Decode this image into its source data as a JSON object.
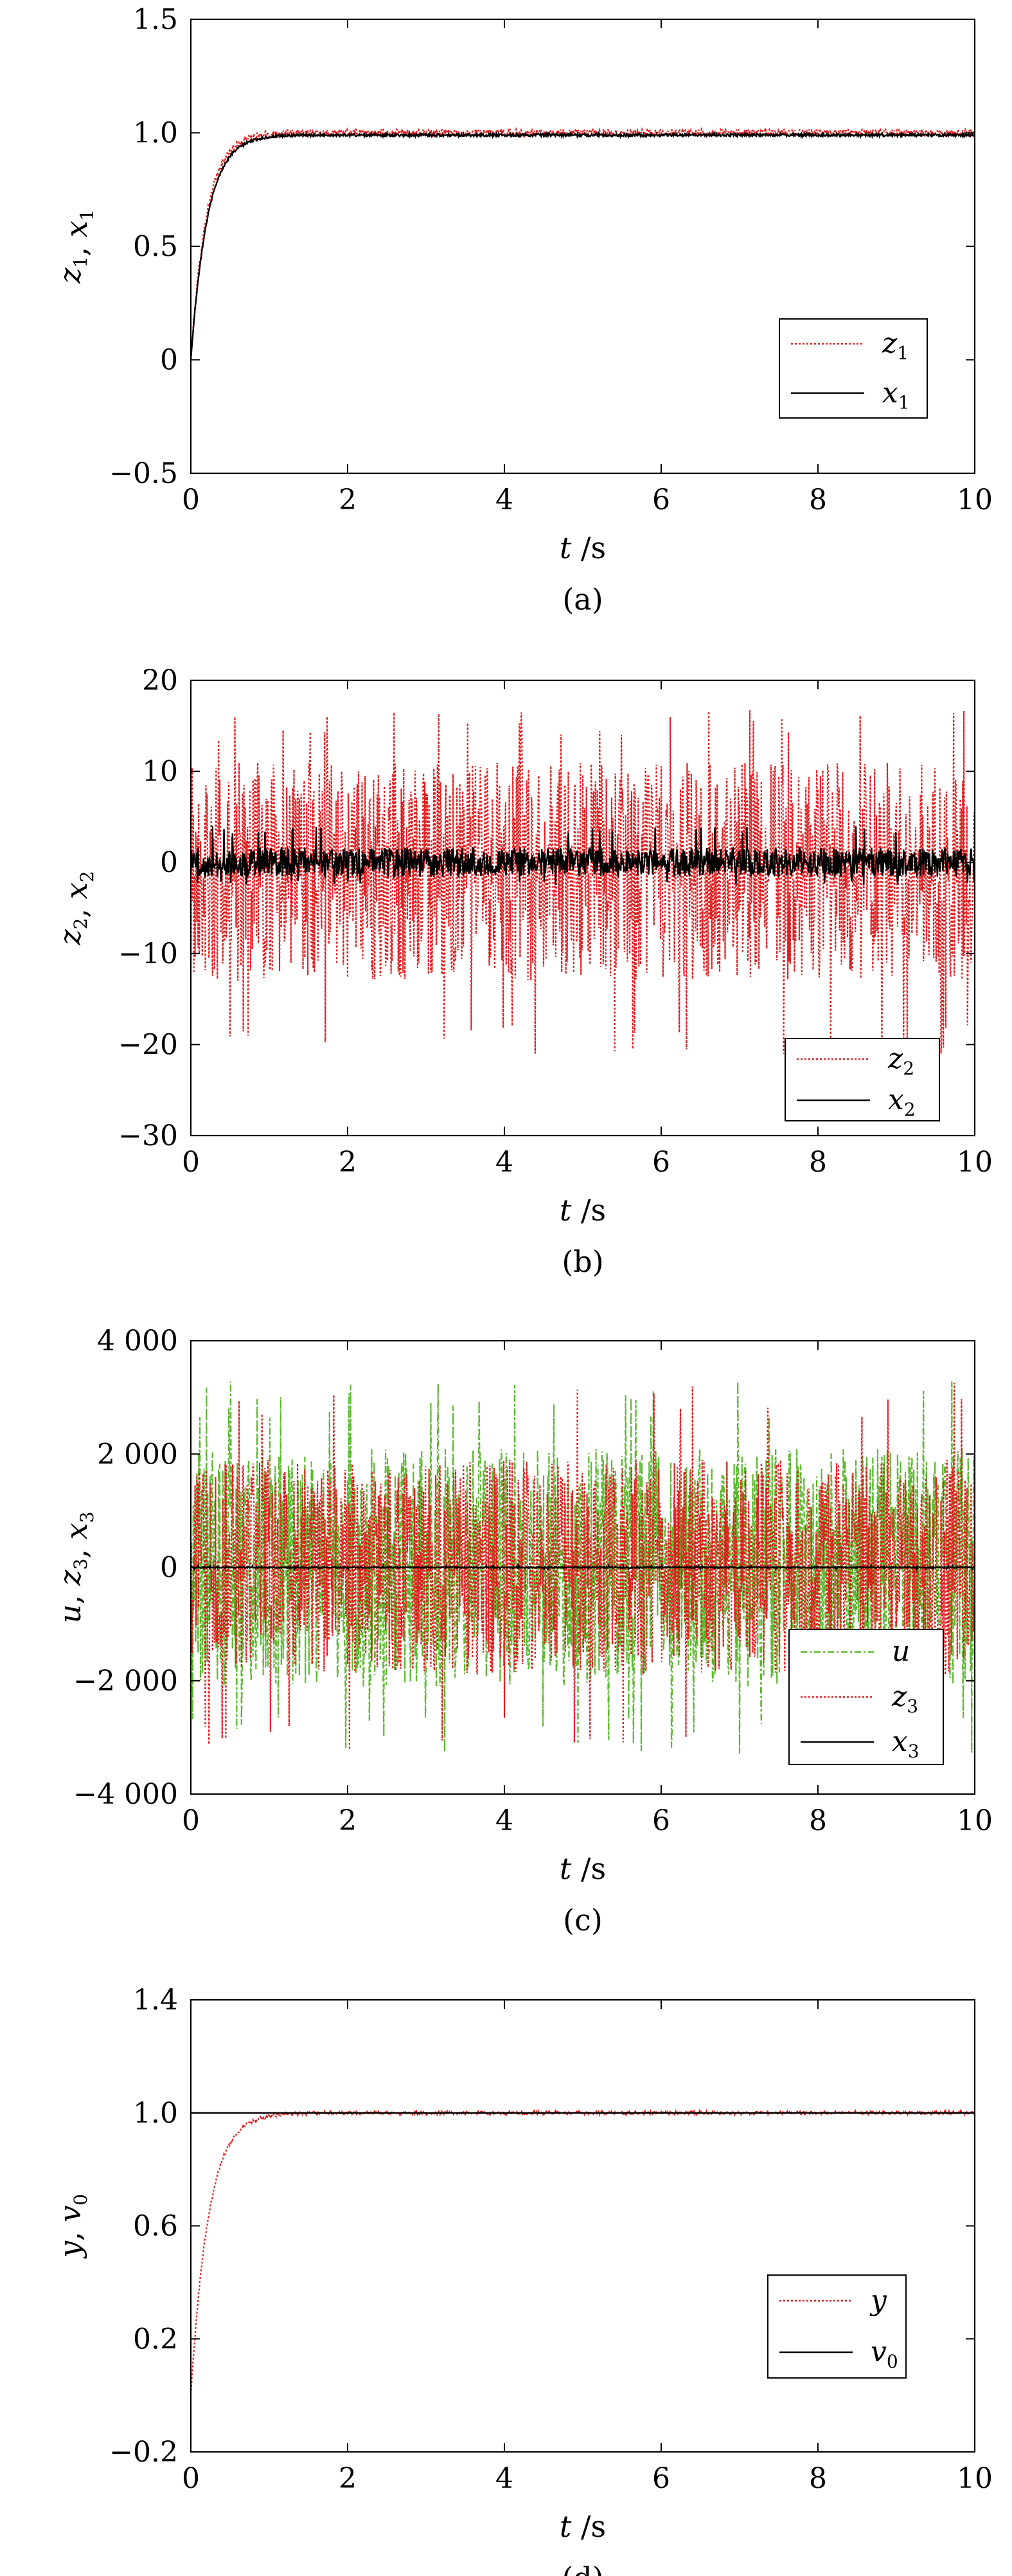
{
  "chart_data": [
    {
      "type": "line",
      "caption": "(a)",
      "xlabel": "t /s",
      "ylabel": "z1, x1",
      "xlim": [
        0,
        10
      ],
      "ylim": [
        -0.5,
        1.5
      ],
      "xticks": [
        0,
        2,
        4,
        6,
        8,
        10
      ],
      "xtick_labels": [
        "0",
        "2",
        "4",
        "6",
        "8",
        "10"
      ],
      "yticks": [
        -0.5,
        0,
        0.5,
        1.0,
        1.5
      ],
      "ytick_labels": [
        "−0.5",
        "0",
        "0.5",
        "1.0",
        "1.5"
      ],
      "legend_position": "bottom-right",
      "series": [
        {
          "name": "z1",
          "style": "dotted",
          "color": "#e41a1c",
          "model": "step",
          "final": 1.0,
          "rise": 0.8,
          "noise": 0.015
        },
        {
          "name": "x1",
          "style": "solid",
          "color": "#000000",
          "model": "step",
          "final": 0.99,
          "rise": 0.85,
          "noise": 0.006
        }
      ]
    },
    {
      "type": "line",
      "caption": "(b)",
      "xlabel": "t /s",
      "ylabel": "z2, x2",
      "xlim": [
        0,
        10
      ],
      "ylim": [
        -30,
        20
      ],
      "xticks": [
        0,
        2,
        4,
        6,
        8,
        10
      ],
      "xtick_labels": [
        "0",
        "2",
        "4",
        "6",
        "8",
        "10"
      ],
      "yticks": [
        -30,
        -20,
        -10,
        0,
        10,
        20
      ],
      "ytick_labels": [
        "−30",
        "−20",
        "−10",
        "0",
        "10",
        "20"
      ],
      "legend_position": "bottom-right",
      "series": [
        {
          "name": "z2",
          "style": "dotted",
          "color": "#e41a1c",
          "model": "noise",
          "center": -1,
          "amp": 12,
          "peak_max": 18,
          "peak_min": -21
        },
        {
          "name": "x2",
          "style": "solid",
          "color": "#000000",
          "model": "noise",
          "center": 0,
          "amp": 1.6,
          "peak_max": 4,
          "peak_min": -2.5
        }
      ]
    },
    {
      "type": "line",
      "caption": "(c)",
      "xlabel": "t /s",
      "ylabel": "u, z3, x3",
      "xlim": [
        0,
        10
      ],
      "ylim": [
        -4000,
        4000
      ],
      "xticks": [
        0,
        2,
        4,
        6,
        8,
        10
      ],
      "xtick_labels": [
        "0",
        "2",
        "4",
        "6",
        "8",
        "10"
      ],
      "yticks": [
        -4000,
        -2000,
        0,
        2000,
        4000
      ],
      "ytick_labels": [
        "−4 000",
        "−2 000",
        "0",
        "2 000",
        "4 000"
      ],
      "legend_position": "bottom-right",
      "series": [
        {
          "name": "u",
          "style": "dashdot",
          "color": "#5ab82e",
          "model": "noise",
          "center": 0,
          "amp": 2100,
          "peak_max": 3300,
          "peak_min": -3300
        },
        {
          "name": "z3",
          "style": "dotted",
          "color": "#e41a1c",
          "model": "noise",
          "center": 0,
          "amp": 1900,
          "peak_max": 3300,
          "peak_min": -3300
        },
        {
          "name": "x3",
          "style": "solid",
          "color": "#000000",
          "model": "noise",
          "center": 0,
          "amp": 12,
          "peak_max": 30,
          "peak_min": -30
        }
      ]
    },
    {
      "type": "line",
      "caption": "(d)",
      "xlabel": "t /s",
      "ylabel": "y, v0",
      "xlim": [
        0,
        10
      ],
      "ylim": [
        -0.2,
        1.4
      ],
      "xticks": [
        0,
        2,
        4,
        6,
        8,
        10
      ],
      "xtick_labels": [
        "0",
        "2",
        "4",
        "6",
        "8",
        "10"
      ],
      "yticks": [
        -0.2,
        0.2,
        0.6,
        1.0,
        1.4
      ],
      "ytick_labels": [
        "−0.2",
        "0.2",
        "0.6",
        "1.0",
        "1.4"
      ],
      "legend_position": "bottom-right",
      "series": [
        {
          "name": "y",
          "style": "dotted",
          "color": "#e41a1c",
          "model": "step",
          "final": 1.0,
          "rise": 0.9,
          "start": 0.0,
          "noise": 0.006
        },
        {
          "name": "v0",
          "style": "solid",
          "color": "#000000",
          "model": "constant",
          "value": 1.0
        }
      ]
    }
  ]
}
